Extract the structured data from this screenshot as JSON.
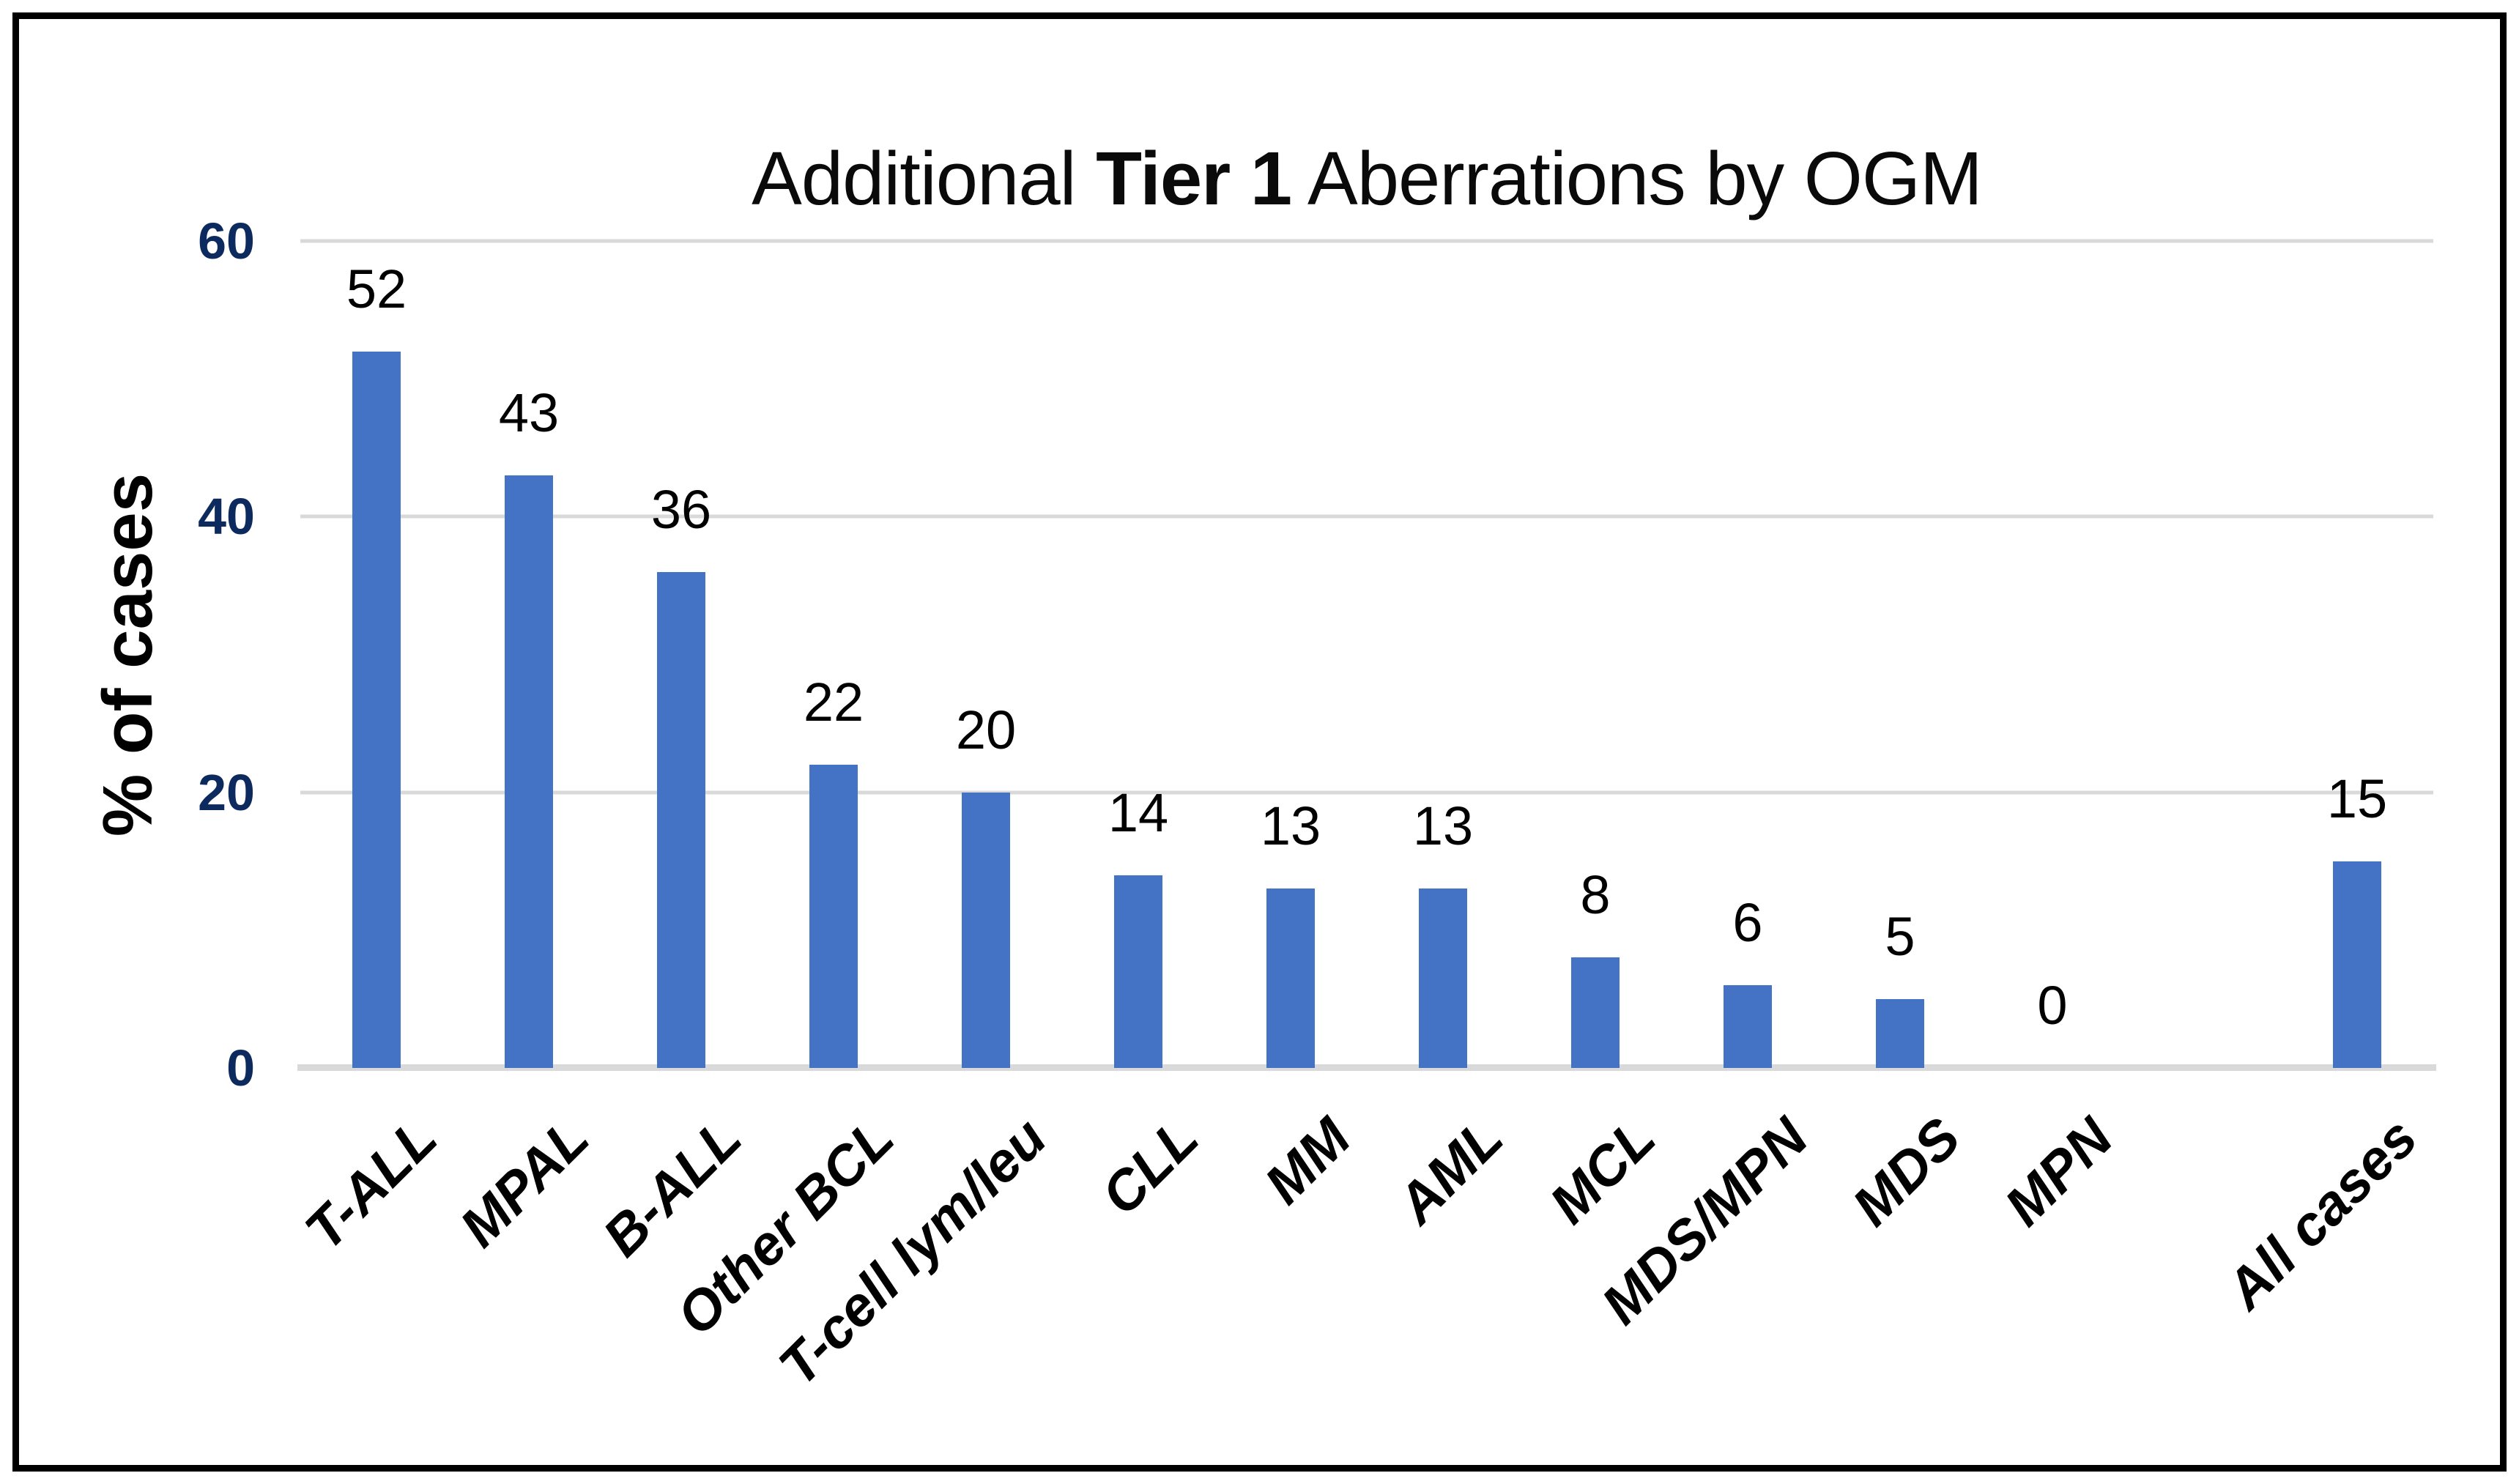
{
  "figure": {
    "background_color": "#FFFFFF",
    "frame_border_color": "#000000"
  },
  "chart_data": {
    "type": "bar",
    "title": "Additional Tier 1 Aberrations by OGM",
    "title_parts": {
      "prefix": "Additional ",
      "bold": "Tier 1",
      "suffix": " Aberrations by OGM"
    },
    "ylabel": "% of cases",
    "xlabel": "",
    "categories": [
      "T-ALL",
      "MPAL",
      "B-ALL",
      "Other BCL",
      "T-cell lym/leu",
      "CLL",
      "MM",
      "AML",
      "MCL",
      "MDS/MPN",
      "MDS",
      "MPN",
      "All cases"
    ],
    "values": [
      52,
      43,
      36,
      22,
      20,
      14,
      13,
      13,
      8,
      6,
      5,
      0,
      15
    ],
    "data_labels": [
      "52",
      "43",
      "36",
      "22",
      "20",
      "14",
      "13",
      "13",
      "8",
      "6",
      "5",
      "0",
      "15"
    ],
    "yticks": [
      60,
      40,
      20,
      0
    ],
    "ylim": [
      0,
      60
    ],
    "grid": true,
    "legend": false,
    "layout": {
      "empty_slot_before_last": true,
      "bar_color": "#4472C4",
      "gridline_color": "#D9D9D9",
      "tick_label_color": "#0C2A5E",
      "data_label_color": "#000000",
      "x_label_rotation_deg": -45
    }
  }
}
